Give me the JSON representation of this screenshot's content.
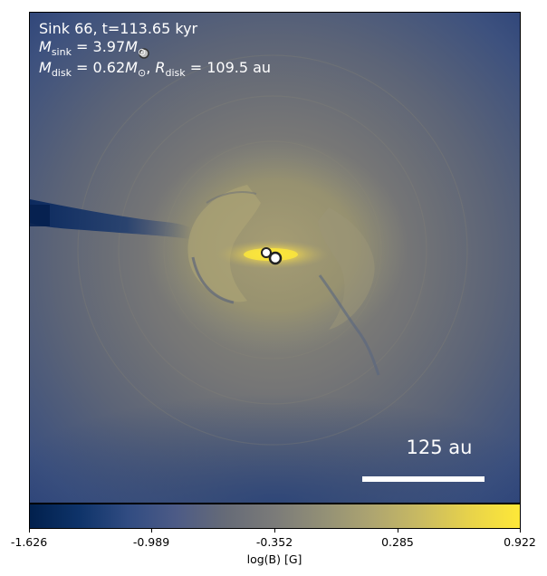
{
  "figure": {
    "label_line1": "Sink 66, t=113.65 kyr",
    "msink": {
      "var": "M",
      "sub": "sink",
      "rest": " = 3.97",
      "unit_var": "M",
      "unit_sub": "⊙"
    },
    "mdisk": {
      "var": "M",
      "sub": "disk",
      "mid": " = 0.62",
      "unit_var": "M",
      "unit_sub": "⊙",
      "sep": ", ",
      "rvar": "R",
      "rsub": "disk",
      "rest": " = 109.5 au"
    },
    "scale_label": "125 au"
  },
  "colorbar": {
    "ticks": [
      "-1.626",
      "-0.989",
      "-0.352",
      "0.285",
      "0.922"
    ],
    "label": "log(B) [G]",
    "colormap": "cividis"
  },
  "colors": {
    "background_field": "#2c4277",
    "disk_core": "#fee838",
    "sink_marker_edge": "#222222",
    "sink_marker_fill": "#ffffff"
  }
}
